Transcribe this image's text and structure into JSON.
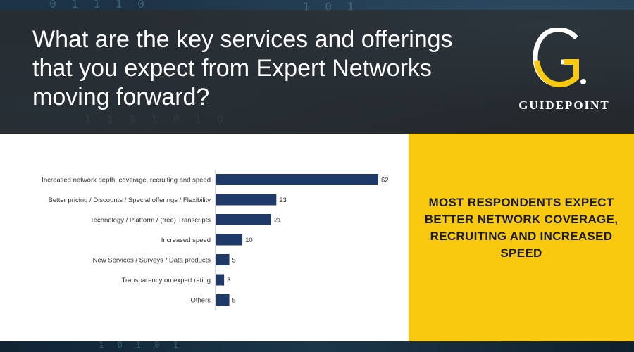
{
  "header": {
    "question": "What are the key services and offerings that you expect from Expert Networks moving forward?"
  },
  "logo": {
    "mark_letter": "G",
    "wordmark": "GUIDEPOINT"
  },
  "callout": {
    "text": "MOST RESPONDENTS EXPECT BETTER NETWORK COVERAGE, RECRUITING AND INCREASED SPEED"
  },
  "colors": {
    "bar": "#1f3a68",
    "accent_yellow": "#f8c90e"
  },
  "chart_data": {
    "type": "bar",
    "orientation": "horizontal",
    "categories": [
      "Increased network depth, coverage, recruiting and speed",
      "Better pricing / Discounts / Special offerings / Flexibility",
      "Technology / Platform / (free) Transcripts",
      "Increased speed",
      "New Services / Surveys / Data products",
      "Transparency on expert rating",
      "Others"
    ],
    "values": [
      62,
      23,
      21,
      10,
      5,
      3,
      5
    ],
    "xlim": [
      0,
      62
    ],
    "title": "",
    "xlabel": "",
    "ylabel": "",
    "grid": false,
    "legend": "none"
  }
}
